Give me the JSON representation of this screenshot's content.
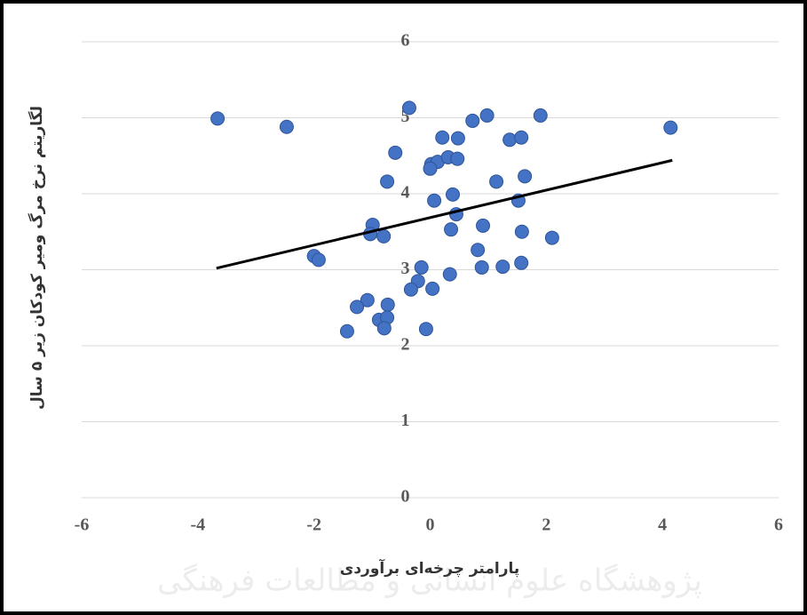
{
  "chart_data": {
    "type": "scatter",
    "x_label": "پارامتر چرخه‌ای برآوردی",
    "y_label": "لگاریتم نرخ مرگ ومیر کودکان زیر ۵ سال",
    "watermark": "پژوهشگاه علوم انسانی و مطالعات فرهنگی",
    "xlim": [
      -6,
      6
    ],
    "ylim": [
      0,
      6
    ],
    "xticks": [
      -6,
      -4,
      -2,
      0,
      2,
      4,
      6
    ],
    "yticks": [
      0,
      1,
      2,
      3,
      4,
      5,
      6
    ],
    "grid": true,
    "color": "#4472c4",
    "x": [
      -3.66,
      -2.47,
      -0.36,
      -0.6,
      -0.74,
      0.73,
      0.98,
      1.9,
      0.21,
      0.48,
      1.37,
      1.57,
      4.14,
      0.02,
      0.13,
      0.31,
      0.47,
      0.0,
      1.14,
      1.63,
      0.39,
      0.07,
      1.52,
      0.45,
      0.91,
      -0.99,
      -1.03,
      -0.8,
      0.36,
      1.58,
      2.1,
      0.82,
      -2.0,
      -1.92,
      -0.15,
      0.89,
      1.25,
      1.57,
      -0.21,
      0.34,
      -0.33,
      0.04,
      -1.08,
      -1.26,
      -0.73,
      -0.88,
      -0.74,
      -0.79,
      -1.43,
      -0.07
    ],
    "values": [
      4.99,
      4.88,
      5.13,
      4.54,
      4.16,
      4.96,
      5.03,
      5.03,
      4.74,
      4.73,
      4.71,
      4.74,
      4.87,
      4.39,
      4.42,
      4.48,
      4.46,
      4.33,
      4.16,
      4.23,
      3.99,
      3.91,
      3.91,
      3.73,
      3.58,
      3.59,
      3.47,
      3.44,
      3.53,
      3.5,
      3.42,
      3.26,
      3.18,
      3.13,
      3.03,
      3.03,
      3.04,
      3.09,
      2.85,
      2.94,
      2.74,
      2.75,
      2.6,
      2.51,
      2.54,
      2.34,
      2.37,
      2.23,
      2.19,
      2.22
    ],
    "trendline": {
      "x": [
        -3.68,
        4.17
      ],
      "values": [
        3.02,
        4.44
      ],
      "color": "#000000"
    }
  }
}
